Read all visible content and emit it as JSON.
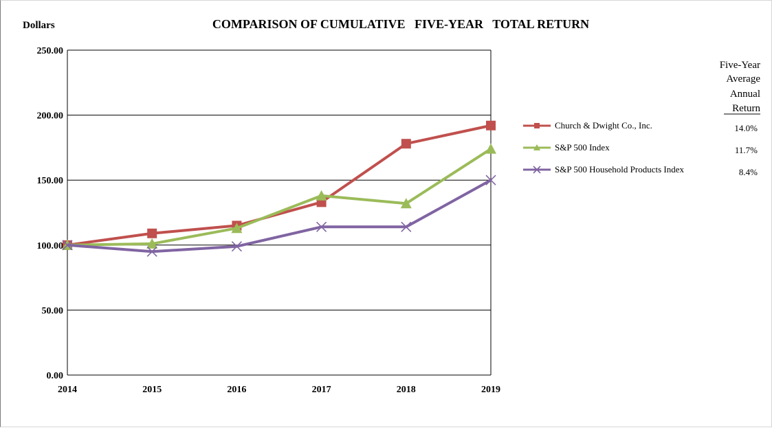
{
  "chart_data": {
    "type": "line",
    "title": "COMPARISON OF CUMULATIVE   FIVE-YEAR   TOTAL RETURN",
    "ylabel": "Dollars",
    "xlabel": "",
    "x": [
      "2014",
      "2015",
      "2016",
      "2017",
      "2018",
      "2019"
    ],
    "ylim": [
      0,
      250
    ],
    "yticks": [
      "0.00",
      "50.00",
      "100.00",
      "150.00",
      "200.00",
      "250.00"
    ],
    "grid": "horizontal",
    "legend_placement": "right",
    "series": [
      {
        "name": "Church & Dwight Co., Inc.",
        "values": [
          100,
          109,
          115,
          133,
          178,
          192
        ],
        "color": "#c0504d",
        "marker": "square"
      },
      {
        "name": "S&P 500 Index",
        "values": [
          100,
          101,
          113,
          138,
          132,
          174
        ],
        "color": "#9bbb59",
        "marker": "triangle"
      },
      {
        "name": "S&P 500 Household Products Index",
        "values": [
          100,
          95,
          99,
          114,
          114,
          150
        ],
        "color": "#8064a2",
        "marker": "x"
      }
    ],
    "returns_header": [
      "Five-Year",
      "Average",
      "Annual",
      "Return"
    ],
    "returns": [
      "14.0%",
      "11.7%",
      "8.4%"
    ]
  }
}
